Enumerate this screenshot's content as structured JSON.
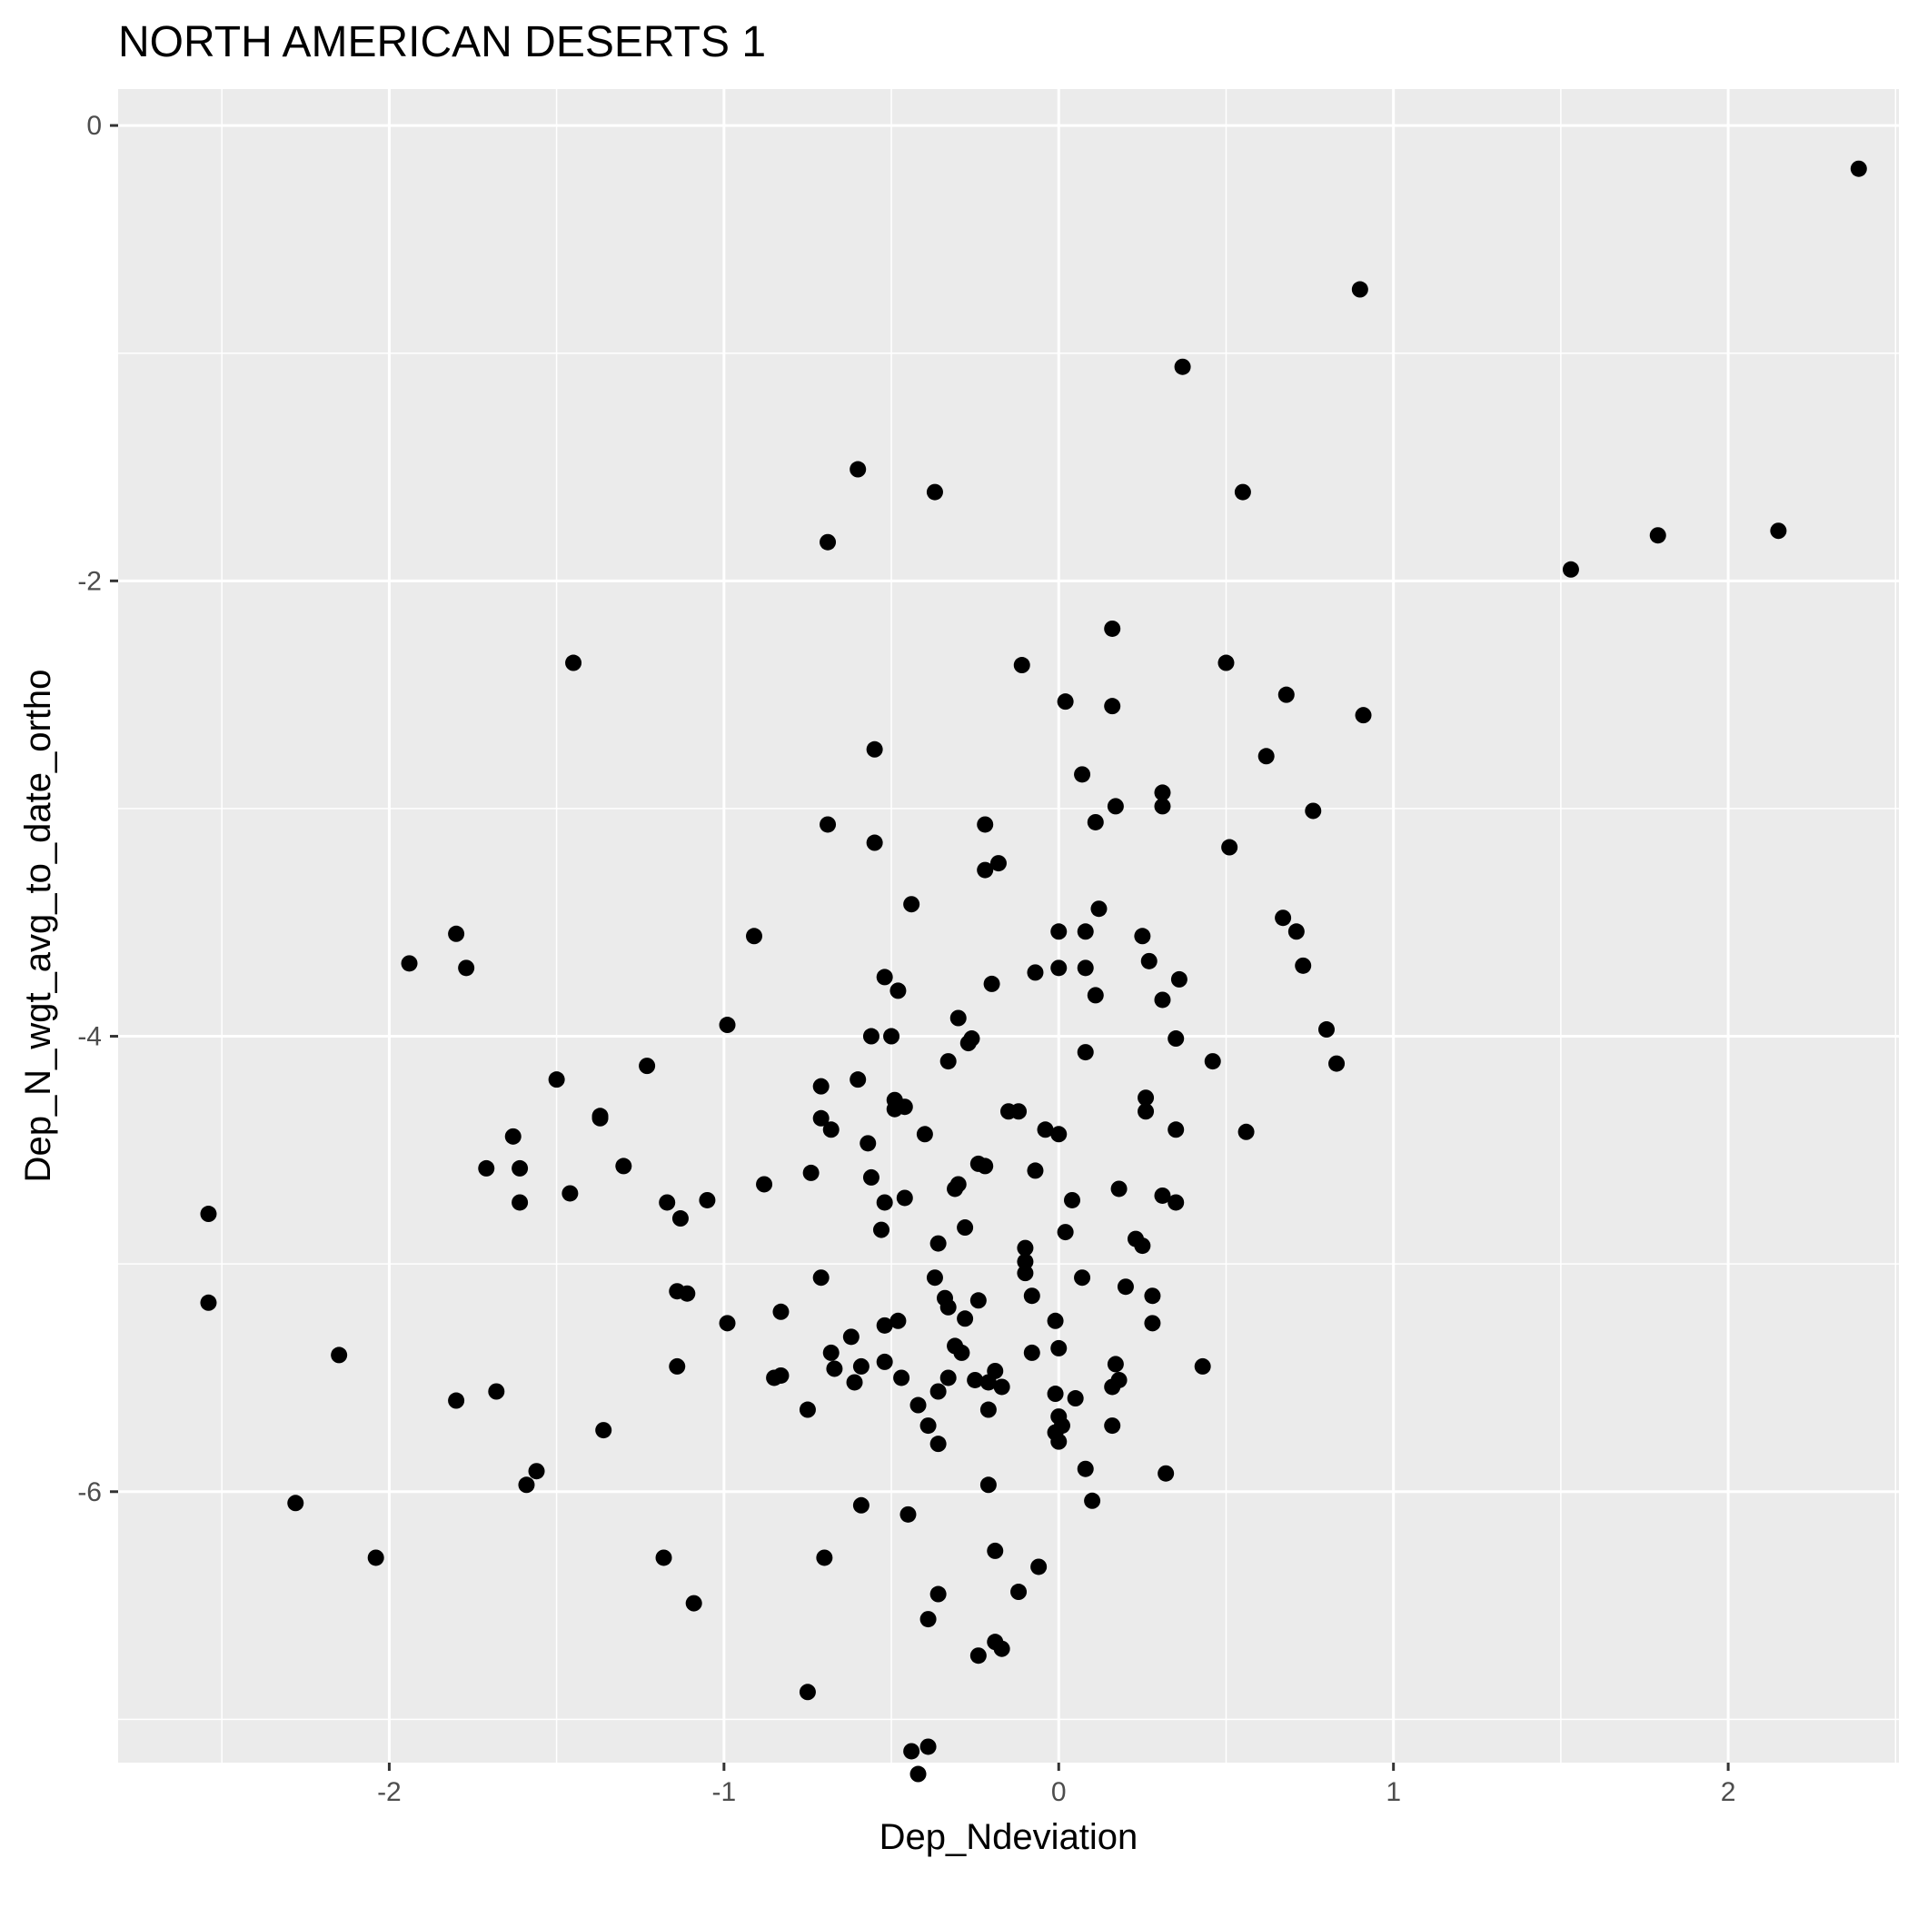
{
  "chart_data": {
    "type": "scatter",
    "title": "NORTH AMERICAN DESERTS 1",
    "xlabel": "Dep_Ndeviation",
    "ylabel": "Dep_N_wgt_avg_to_date_ortho",
    "xlim": [
      -2.81,
      2.51
    ],
    "ylim": [
      -7.19,
      0.16
    ],
    "x_ticks": [
      -2,
      -1,
      0,
      1,
      2
    ],
    "y_ticks": [
      0,
      -2,
      -4,
      -6
    ],
    "x_tick_labels": [
      "-2",
      "-1",
      "0",
      "1",
      "2"
    ],
    "y_tick_labels": [
      "0",
      "-2",
      "-4",
      "-6"
    ],
    "grid": true,
    "background": "#ebebeb",
    "grid_color": "#ffffff",
    "point_color": "#000000",
    "points": [
      [
        2.39,
        -0.19
      ],
      [
        0.9,
        -0.72
      ],
      [
        0.37,
        -1.06
      ],
      [
        0.55,
        -1.61
      ],
      [
        -0.6,
        -1.51
      ],
      [
        -0.37,
        -1.61
      ],
      [
        -0.69,
        -1.83
      ],
      [
        1.53,
        -1.95
      ],
      [
        1.79,
        -1.8
      ],
      [
        2.15,
        -1.78
      ],
      [
        0.16,
        -2.21
      ],
      [
        0.5,
        -2.36
      ],
      [
        -0.11,
        -2.37
      ],
      [
        -1.45,
        -2.36
      ],
      [
        0.02,
        -2.53
      ],
      [
        0.16,
        -2.55
      ],
      [
        0.68,
        -2.5
      ],
      [
        0.91,
        -2.59
      ],
      [
        0.62,
        -2.77
      ],
      [
        -0.55,
        -2.74
      ],
      [
        0.07,
        -2.85
      ],
      [
        0.31,
        -2.93
      ],
      [
        0.31,
        -2.99
      ],
      [
        0.76,
        -3.01
      ],
      [
        0.17,
        -2.99
      ],
      [
        0.11,
        -3.06
      ],
      [
        -0.22,
        -3.07
      ],
      [
        -0.69,
        -3.07
      ],
      [
        -0.55,
        -3.15
      ],
      [
        0.51,
        -3.17
      ],
      [
        -0.18,
        -3.24
      ],
      [
        -0.22,
        -3.27
      ],
      [
        -0.44,
        -3.42
      ],
      [
        0.12,
        -3.44
      ],
      [
        0.67,
        -3.48
      ],
      [
        0.71,
        -3.54
      ],
      [
        0.08,
        -3.54
      ],
      [
        0.0,
        -3.54
      ],
      [
        0.25,
        -3.56
      ],
      [
        -0.91,
        -3.56
      ],
      [
        -1.8,
        -3.55
      ],
      [
        -1.94,
        -3.68
      ],
      [
        -1.77,
        -3.7
      ],
      [
        0.27,
        -3.67
      ],
      [
        0.0,
        -3.7
      ],
      [
        0.08,
        -3.7
      ],
      [
        0.73,
        -3.69
      ],
      [
        -0.07,
        -3.72
      ],
      [
        0.36,
        -3.75
      ],
      [
        -0.52,
        -3.74
      ],
      [
        -0.2,
        -3.77
      ],
      [
        -0.48,
        -3.8
      ],
      [
        0.11,
        -3.82
      ],
      [
        0.31,
        -3.84
      ],
      [
        -0.3,
        -3.92
      ],
      [
        -0.99,
        -3.95
      ],
      [
        -0.56,
        -4.0
      ],
      [
        -0.5,
        -4.0
      ],
      [
        -0.26,
        -4.01
      ],
      [
        -0.27,
        -4.03
      ],
      [
        0.35,
        -4.01
      ],
      [
        0.8,
        -3.97
      ],
      [
        0.08,
        -4.07
      ],
      [
        -0.33,
        -4.11
      ],
      [
        0.46,
        -4.11
      ],
      [
        0.83,
        -4.12
      ],
      [
        -1.23,
        -4.13
      ],
      [
        -1.5,
        -4.19
      ],
      [
        -0.6,
        -4.19
      ],
      [
        -0.71,
        -4.22
      ],
      [
        0.26,
        -4.27
      ],
      [
        -0.49,
        -4.28
      ],
      [
        -0.49,
        -4.32
      ],
      [
        -0.46,
        -4.31
      ],
      [
        0.26,
        -4.33
      ],
      [
        -0.15,
        -4.33
      ],
      [
        -0.12,
        -4.33
      ],
      [
        -1.37,
        -4.35
      ],
      [
        -1.37,
        -4.36
      ],
      [
        -0.71,
        -4.36
      ],
      [
        -0.68,
        -4.41
      ],
      [
        -0.04,
        -4.41
      ],
      [
        0.35,
        -4.41
      ],
      [
        0.56,
        -4.42
      ],
      [
        0.0,
        -4.43
      ],
      [
        -1.63,
        -4.44
      ],
      [
        -0.4,
        -4.43
      ],
      [
        -0.57,
        -4.47
      ],
      [
        -0.24,
        -4.56
      ],
      [
        -0.22,
        -4.57
      ],
      [
        -1.3,
        -4.57
      ],
      [
        -1.71,
        -4.58
      ],
      [
        -1.61,
        -4.58
      ],
      [
        -0.07,
        -4.59
      ],
      [
        -0.74,
        -4.6
      ],
      [
        -0.56,
        -4.62
      ],
      [
        -0.3,
        -4.65
      ],
      [
        -0.31,
        -4.67
      ],
      [
        0.18,
        -4.67
      ],
      [
        -0.88,
        -4.65
      ],
      [
        -1.46,
        -4.69
      ],
      [
        0.31,
        -4.7
      ],
      [
        -0.46,
        -4.71
      ],
      [
        -1.05,
        -4.72
      ],
      [
        -1.61,
        -4.73
      ],
      [
        -0.52,
        -4.73
      ],
      [
        0.35,
        -4.73
      ],
      [
        -1.17,
        -4.73
      ],
      [
        0.04,
        -4.72
      ],
      [
        -2.54,
        -4.78
      ],
      [
        -1.13,
        -4.8
      ],
      [
        -0.53,
        -4.85
      ],
      [
        -0.28,
        -4.84
      ],
      [
        0.02,
        -4.86
      ],
      [
        0.23,
        -4.89
      ],
      [
        0.25,
        -4.92
      ],
      [
        -0.36,
        -4.91
      ],
      [
        -0.1,
        -4.93
      ],
      [
        -0.1,
        -4.99
      ],
      [
        -0.37,
        -5.06
      ],
      [
        -0.71,
        -5.06
      ],
      [
        -0.1,
        -5.04
      ],
      [
        0.07,
        -5.06
      ],
      [
        0.2,
        -5.1
      ],
      [
        -1.14,
        -5.12
      ],
      [
        -1.11,
        -5.13
      ],
      [
        -0.08,
        -5.14
      ],
      [
        0.28,
        -5.14
      ],
      [
        -0.34,
        -5.15
      ],
      [
        -0.24,
        -5.16
      ],
      [
        -2.54,
        -5.17
      ],
      [
        -0.33,
        -5.19
      ],
      [
        -0.83,
        -5.21
      ],
      [
        -0.28,
        -5.24
      ],
      [
        -0.48,
        -5.25
      ],
      [
        -0.99,
        -5.26
      ],
      [
        -0.52,
        -5.27
      ],
      [
        0.28,
        -5.26
      ],
      [
        -0.01,
        -5.25
      ],
      [
        -0.62,
        -5.32
      ],
      [
        -0.31,
        -5.36
      ],
      [
        -0.68,
        -5.39
      ],
      [
        -0.29,
        -5.39
      ],
      [
        -0.08,
        -5.39
      ],
      [
        0.0,
        -5.37
      ],
      [
        -2.15,
        -5.4
      ],
      [
        -0.67,
        -5.46
      ],
      [
        -0.59,
        -5.45
      ],
      [
        -0.52,
        -5.43
      ],
      [
        0.17,
        -5.44
      ],
      [
        0.43,
        -5.45
      ],
      [
        -1.14,
        -5.45
      ],
      [
        -0.19,
        -5.47
      ],
      [
        -0.47,
        -5.5
      ],
      [
        -0.83,
        -5.49
      ],
      [
        -0.85,
        -5.5
      ],
      [
        -0.33,
        -5.5
      ],
      [
        -0.25,
        -5.51
      ],
      [
        -0.21,
        -5.52
      ],
      [
        0.18,
        -5.51
      ],
      [
        -0.61,
        -5.52
      ],
      [
        -0.17,
        -5.54
      ],
      [
        0.16,
        -5.54
      ],
      [
        -1.68,
        -5.56
      ],
      [
        -0.36,
        -5.56
      ],
      [
        -0.01,
        -5.57
      ],
      [
        -1.8,
        -5.6
      ],
      [
        0.05,
        -5.59
      ],
      [
        -0.42,
        -5.62
      ],
      [
        -0.21,
        -5.64
      ],
      [
        -0.75,
        -5.64
      ],
      [
        0.0,
        -5.67
      ],
      [
        0.01,
        -5.71
      ],
      [
        0.16,
        -5.71
      ],
      [
        -0.39,
        -5.71
      ],
      [
        -1.36,
        -5.73
      ],
      [
        -0.01,
        -5.74
      ],
      [
        -0.36,
        -5.79
      ],
      [
        0.0,
        -5.78
      ],
      [
        -1.56,
        -5.91
      ],
      [
        0.08,
        -5.9
      ],
      [
        0.32,
        -5.92
      ],
      [
        -1.59,
        -5.97
      ],
      [
        -0.21,
        -5.97
      ],
      [
        0.1,
        -6.04
      ],
      [
        -2.28,
        -6.05
      ],
      [
        -0.59,
        -6.06
      ],
      [
        -0.45,
        -6.1
      ],
      [
        -0.19,
        -6.26
      ],
      [
        -2.04,
        -6.29
      ],
      [
        -1.18,
        -6.29
      ],
      [
        -0.7,
        -6.29
      ],
      [
        -0.06,
        -6.33
      ],
      [
        -0.36,
        -6.45
      ],
      [
        -0.12,
        -6.44
      ],
      [
        -1.09,
        -6.49
      ],
      [
        -0.39,
        -6.56
      ],
      [
        -0.19,
        -6.66
      ],
      [
        -0.24,
        -6.72
      ],
      [
        -0.17,
        -6.69
      ],
      [
        -0.75,
        -6.88
      ],
      [
        -0.39,
        -7.12
      ],
      [
        -0.44,
        -7.14
      ],
      [
        -0.42,
        -7.24
      ]
    ]
  }
}
